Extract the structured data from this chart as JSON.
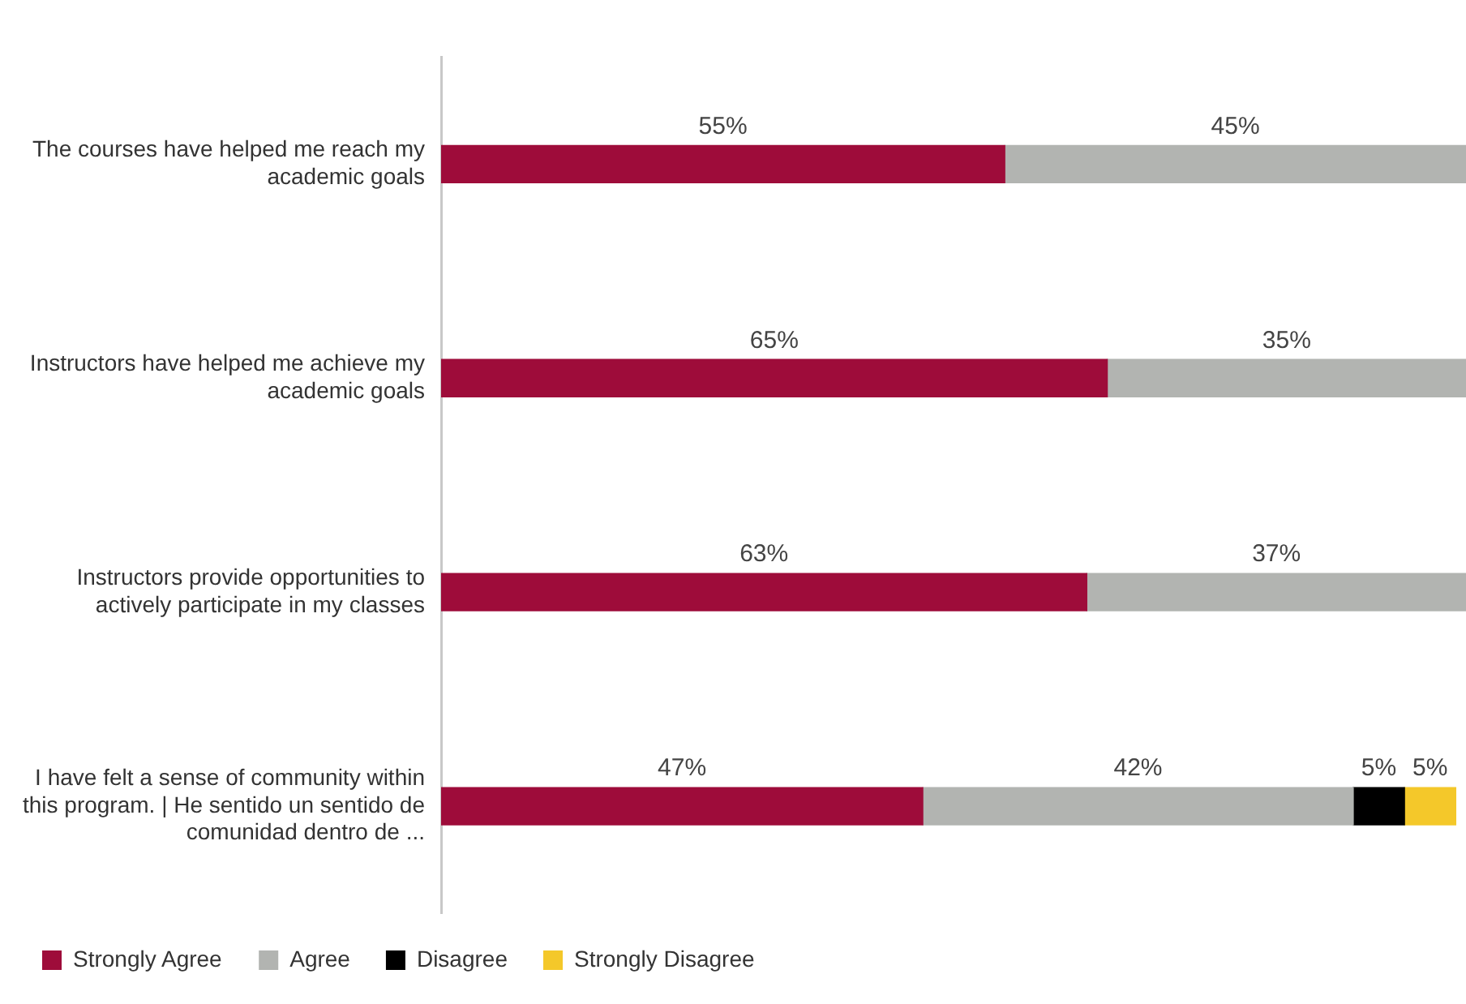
{
  "chart_data": {
    "type": "bar",
    "orientation": "horizontal",
    "stacked": true,
    "legend": "bottom left",
    "categories": [
      "The courses have helped me reach my academic goals",
      "Instructors have helped me achieve my academic goals",
      "Instructors provide opportunities to actively participate in my classes",
      "I have felt a sense of community within this program. | He sentido un sentido de comunidad dentro de ..."
    ],
    "series": [
      {
        "name": "Strongly Agree",
        "color": "#9e0c3a",
        "values": [
          55,
          65,
          63,
          47
        ],
        "value_labels": [
          "55%",
          "65%",
          "63%",
          "47%"
        ]
      },
      {
        "name": "Agree",
        "color": "#b2b4b1",
        "values": [
          45,
          35,
          37,
          42
        ],
        "value_labels": [
          "45%",
          "35%",
          "37%",
          "42%"
        ]
      },
      {
        "name": "Disagree",
        "color": "#000000",
        "values": [
          null,
          null,
          null,
          5
        ],
        "value_labels": [
          null,
          null,
          null,
          "5%"
        ]
      },
      {
        "name": "Strongly Disagree",
        "color": "#f4c82a",
        "values": [
          null,
          null,
          null,
          5
        ],
        "value_labels": [
          null,
          null,
          null,
          "5%"
        ]
      }
    ]
  }
}
